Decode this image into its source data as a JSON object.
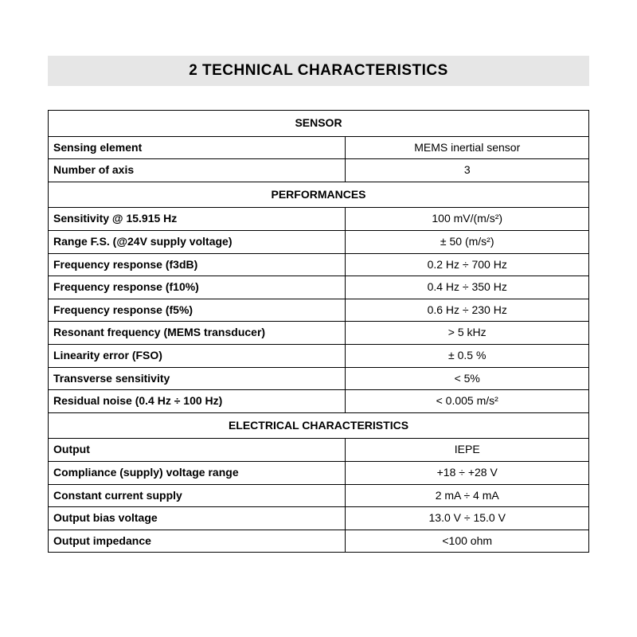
{
  "title": "2   TECHNICAL CHARACTERISTICS",
  "sections": {
    "sensor": {
      "header": "SENSOR"
    },
    "performances": {
      "header": "PERFORMANCES"
    },
    "electrical": {
      "header": "ELECTRICAL CHARACTERISTICS"
    }
  },
  "rows": {
    "sensing_element": {
      "label": "Sensing element",
      "value": "MEMS inertial sensor"
    },
    "num_axis": {
      "label": "Number of axis",
      "value": "3"
    },
    "sensitivity": {
      "label": "Sensitivity @ 15.915 Hz",
      "value": "100 mV/(m/s²)"
    },
    "range_fs": {
      "label": "Range F.S. (@24V supply  voltage)",
      "value": "± 50 (m/s²)"
    },
    "freq_f3db": {
      "label": "Frequency response (f3dB)",
      "value": "0.2 Hz ÷ 700 Hz"
    },
    "freq_f10": {
      "label": "Frequency response (f10%)",
      "value": "0.4 Hz ÷ 350 Hz"
    },
    "freq_f5": {
      "label": "Frequency response (f5%)",
      "value": "0.6 Hz ÷ 230 Hz"
    },
    "resonant": {
      "label": "Resonant frequency (MEMS transducer)",
      "value": "> 5 kHz"
    },
    "linearity": {
      "label": "Linearity error (FSO)",
      "value": "± 0.5 %"
    },
    "transverse": {
      "label": "Transverse sensitivity",
      "value": "< 5%"
    },
    "residual_noise": {
      "label": "Residual noise (0.4 Hz ÷ 100 Hz)",
      "value": "< 0.005 m/s²"
    },
    "output": {
      "label": "Output",
      "value": "IEPE"
    },
    "compliance": {
      "label": "Compliance (supply) voltage range",
      "value": "+18 ÷ +28 V"
    },
    "constant_current": {
      "label": "Constant current supply",
      "value": "2 mA ÷ 4 mA"
    },
    "bias_voltage": {
      "label": "Output bias voltage",
      "value": "13.0 V ÷ 15.0 V"
    },
    "impedance": {
      "label": "Output impedance",
      "value": "<100 ohm"
    }
  },
  "style": {
    "title_bg": "#e6e6e6",
    "border_color": "#000000",
    "text_color": "#000000",
    "page_bg": "#ffffff",
    "title_fontsize": 19,
    "cell_fontsize": 14
  }
}
